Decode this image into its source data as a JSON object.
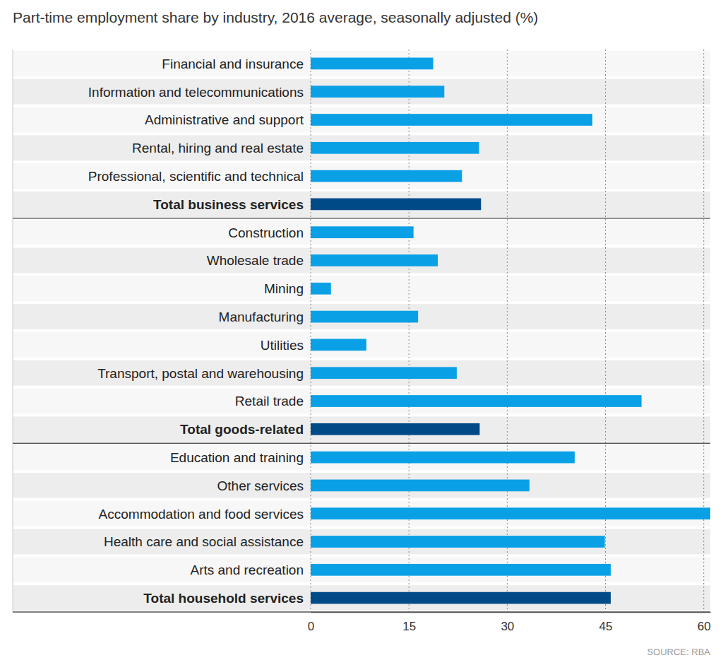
{
  "chart_data": {
    "type": "bar",
    "orientation": "horizontal",
    "title": "Part-time employment share by industry, 2016 average, seasonally adjusted (%)",
    "source": "SOURCE: RBA",
    "categories": [
      "Financial and insurance",
      "Information and telecommunications",
      "Administrative and support",
      "Rental, hiring and real estate",
      "Professional, scientific and technical",
      "Total business services",
      "Construction",
      "Wholesale trade",
      "Mining",
      "Manufacturing",
      "Utilities",
      "Transport, postal and warehousing",
      "Retail trade",
      "Total goods-related",
      "Education and training",
      "Other services",
      "Accommodation and food services",
      "Health care and social assistance",
      "Arts and recreation",
      "Total household services"
    ],
    "values": [
      18.7,
      20.4,
      43.0,
      25.7,
      23.1,
      26.0,
      15.7,
      19.4,
      3.1,
      16.4,
      8.5,
      22.3,
      50.5,
      25.8,
      40.3,
      33.4,
      61.0,
      44.9,
      45.8,
      45.8
    ],
    "colors": [
      "#0aa0e6",
      "#0aa0e6",
      "#0aa0e6",
      "#0aa0e6",
      "#0aa0e6",
      "#004a87",
      "#0aa0e6",
      "#0aa0e6",
      "#0aa0e6",
      "#0aa0e6",
      "#0aa0e6",
      "#0aa0e6",
      "#0aa0e6",
      "#004a87",
      "#0aa0e6",
      "#0aa0e6",
      "#0aa0e6",
      "#0aa0e6",
      "#0aa0e6",
      "#004a87"
    ],
    "xlim": [
      0,
      61
    ],
    "xticks": [
      0,
      15,
      30,
      45,
      60
    ],
    "grid": true
  }
}
